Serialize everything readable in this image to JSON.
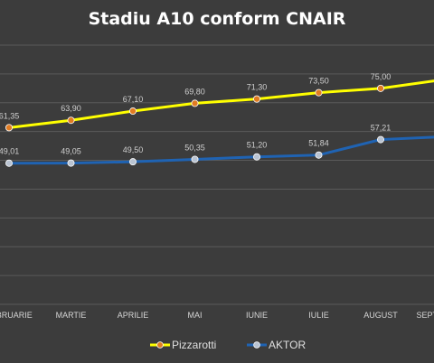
{
  "chart_data": {
    "type": "line",
    "title": "Stadiu A10 conform CNAIR",
    "categories": [
      "FEBRUARIE",
      "MARTIE",
      "APRILIE",
      "MAI",
      "IUNIE",
      "IULIE",
      "AUGUST",
      "SEPTEMBRIE"
    ],
    "series": [
      {
        "name": "Pizzarotti",
        "color": "#ffff00",
        "marker_color": "#e07b22",
        "values": [
          61.35,
          63.9,
          67.1,
          69.8,
          71.3,
          73.5,
          75.0,
          78.0
        ],
        "labels": [
          "61,35",
          "63,90",
          "67,10",
          "69,80",
          "71,30",
          "73,50",
          "75,00",
          ""
        ]
      },
      {
        "name": "AKTOR",
        "color": "#1f63b3",
        "marker_color": "#b9c3d1",
        "values": [
          49.01,
          49.05,
          49.5,
          50.35,
          51.2,
          51.84,
          57.21,
          58.2
        ],
        "labels": [
          "49,01",
          "49,05",
          "49,50",
          "50,35",
          "51,20",
          "51,84",
          "57,21",
          ""
        ]
      }
    ],
    "ylim": [
      0,
      90
    ],
    "grid": true,
    "legend_position": "bottom"
  }
}
